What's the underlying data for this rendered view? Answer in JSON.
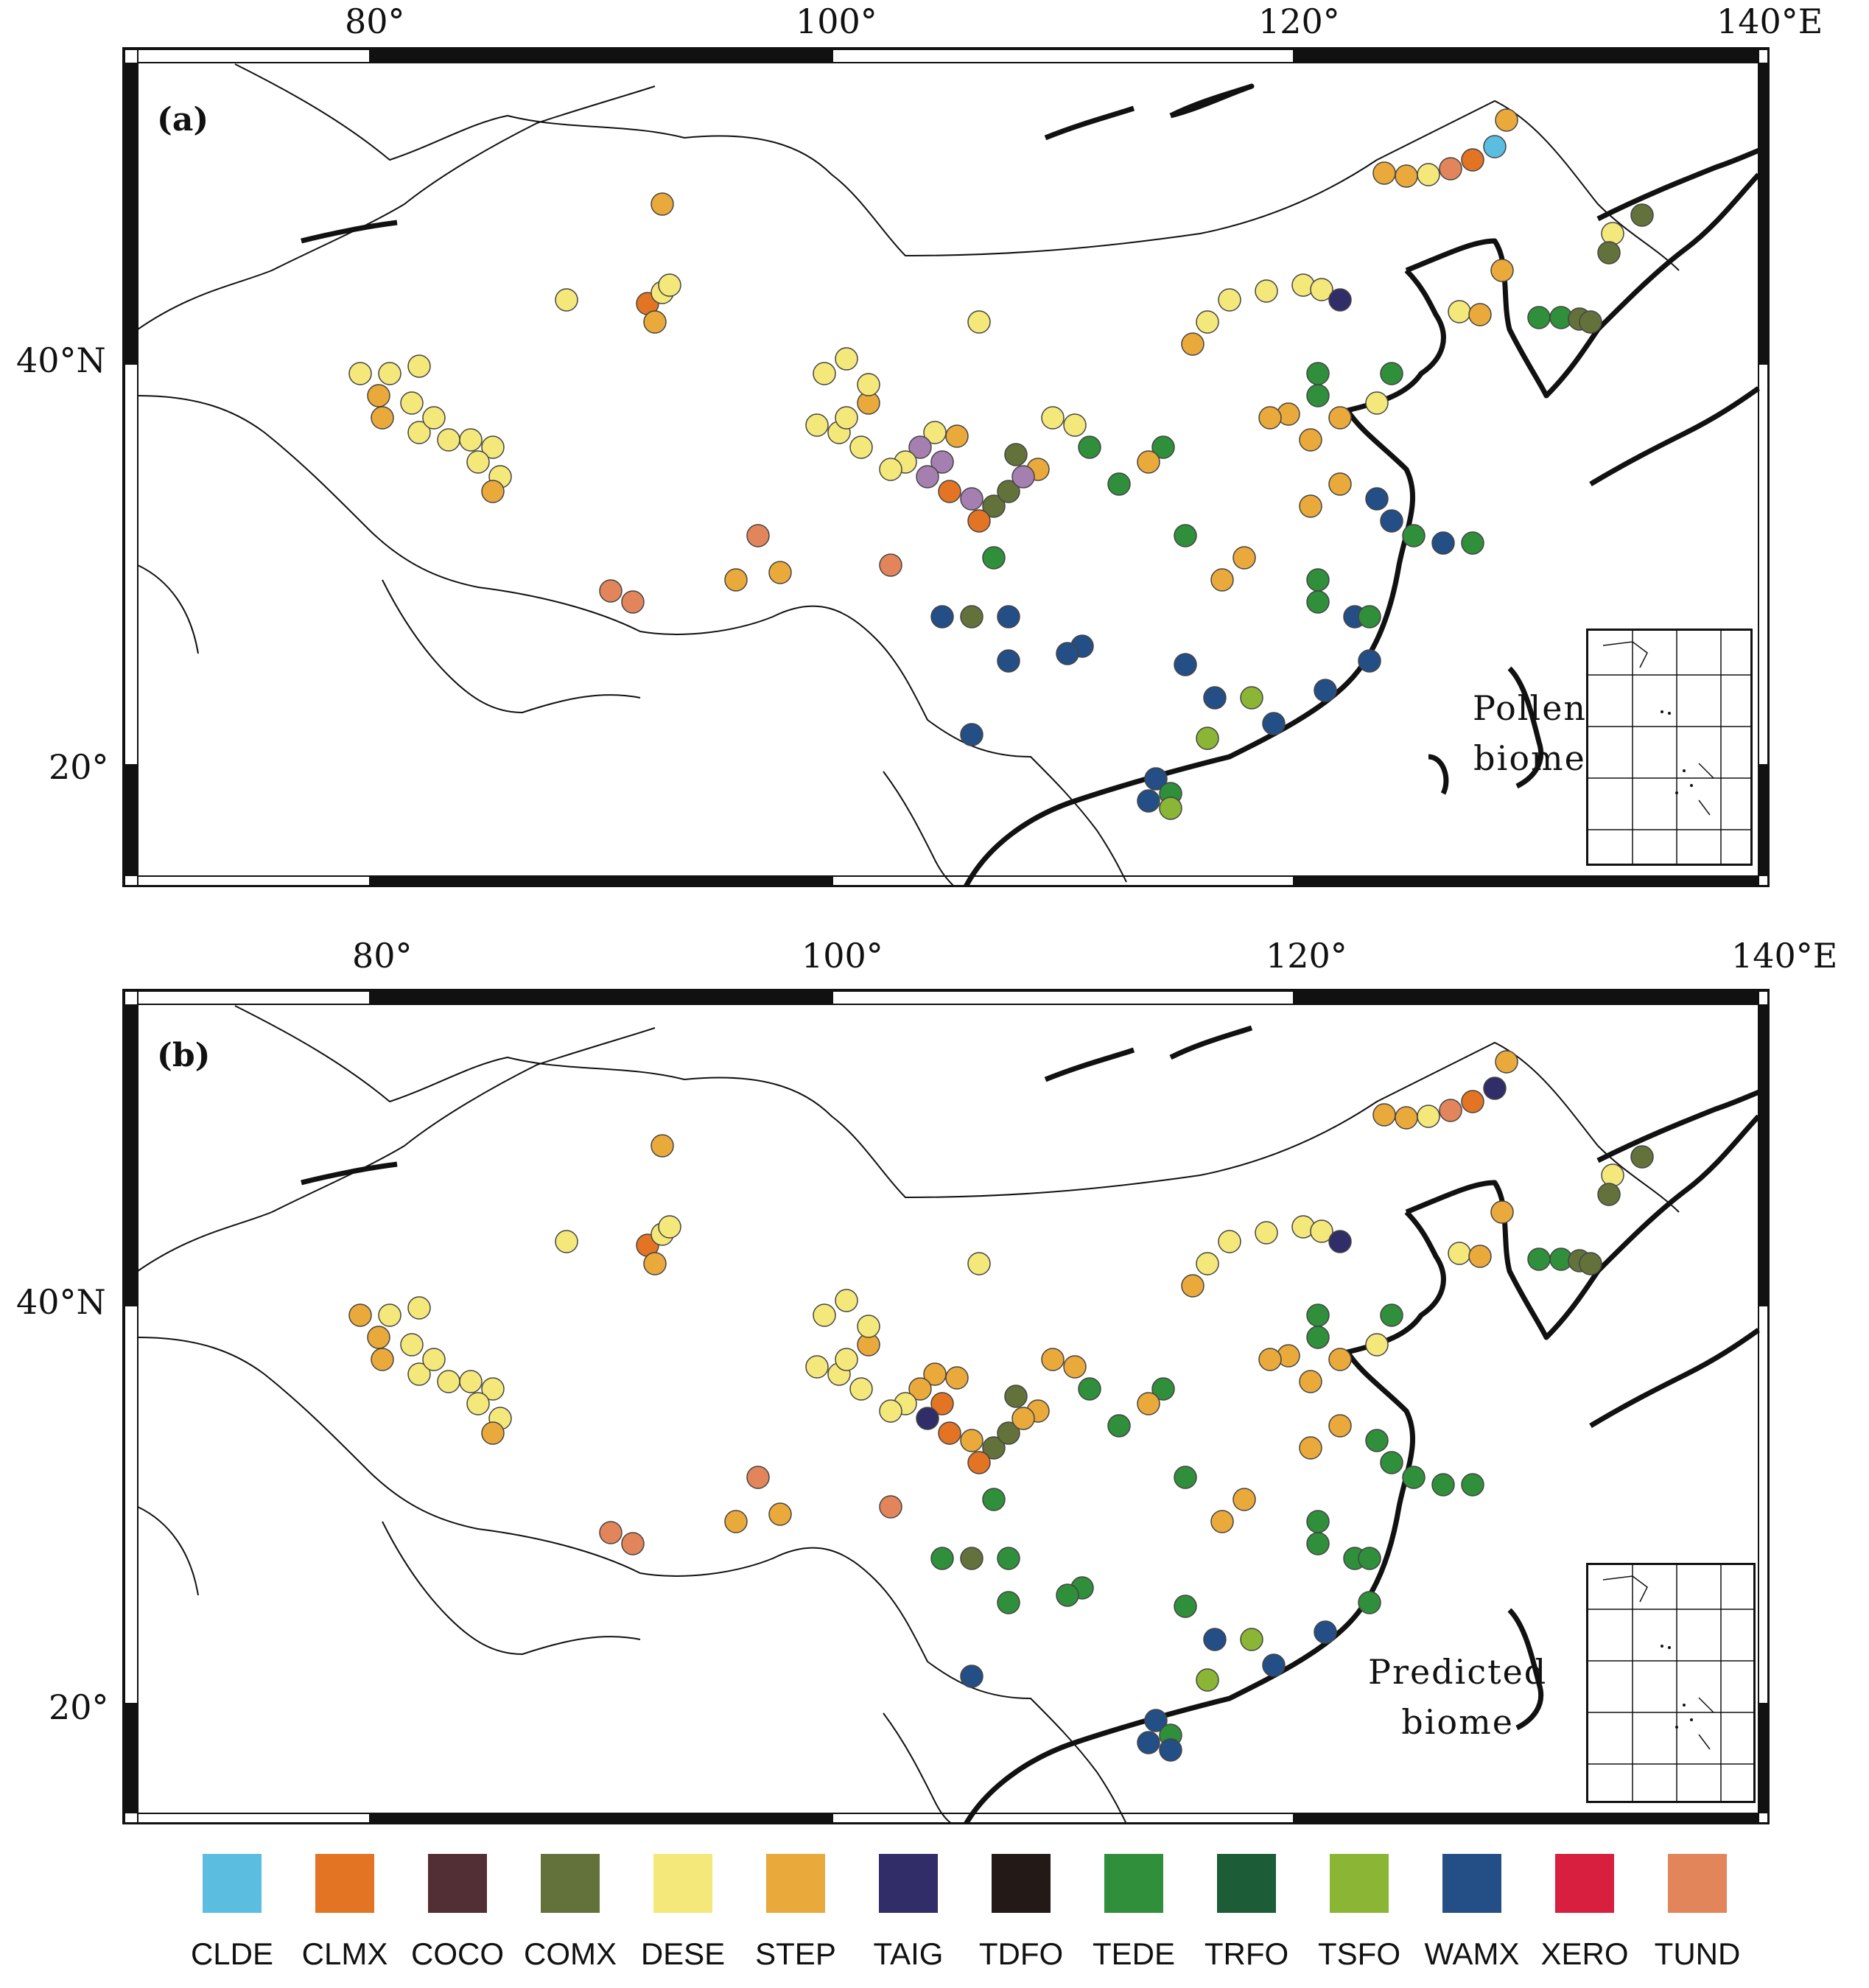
{
  "panels": [
    {
      "label": "(a)",
      "caption_line1": "Pollen",
      "caption_line2": "biome",
      "lon_labels": [
        "80°",
        "100°",
        "120°",
        "140°E"
      ],
      "lat_labels": [
        "40°N",
        "20°"
      ]
    },
    {
      "label": "(b)",
      "caption_line1": "Predicted",
      "caption_line2": "biome",
      "lon_labels": [
        "80°",
        "100°",
        "120°",
        "140°E"
      ],
      "lat_labels": [
        "40°N",
        "20°"
      ]
    }
  ],
  "legend": [
    {
      "code": "CLDE",
      "color": "#5bbde0"
    },
    {
      "code": "CLMX",
      "color": "#e27424"
    },
    {
      "code": "COCO",
      "color": "#522f35"
    },
    {
      "code": "COMX",
      "color": "#63723a"
    },
    {
      "code": "DESE",
      "color": "#f4e87b"
    },
    {
      "code": "STEP",
      "color": "#e9a93b"
    },
    {
      "code": "TAIG",
      "color": "#312d68"
    },
    {
      "code": "TDFO",
      "color": "#231a18"
    },
    {
      "code": "TEDE",
      "color": "#2f8f3b"
    },
    {
      "code": "TRFO",
      "color": "#1c5c36"
    },
    {
      "code": "TSFO",
      "color": "#8bb534"
    },
    {
      "code": "WAMX",
      "color": "#244e86"
    },
    {
      "code": "XERO",
      "color": "#d81f3f"
    },
    {
      "code": "TUND",
      "color": "#e2855b"
    }
  ]
}
